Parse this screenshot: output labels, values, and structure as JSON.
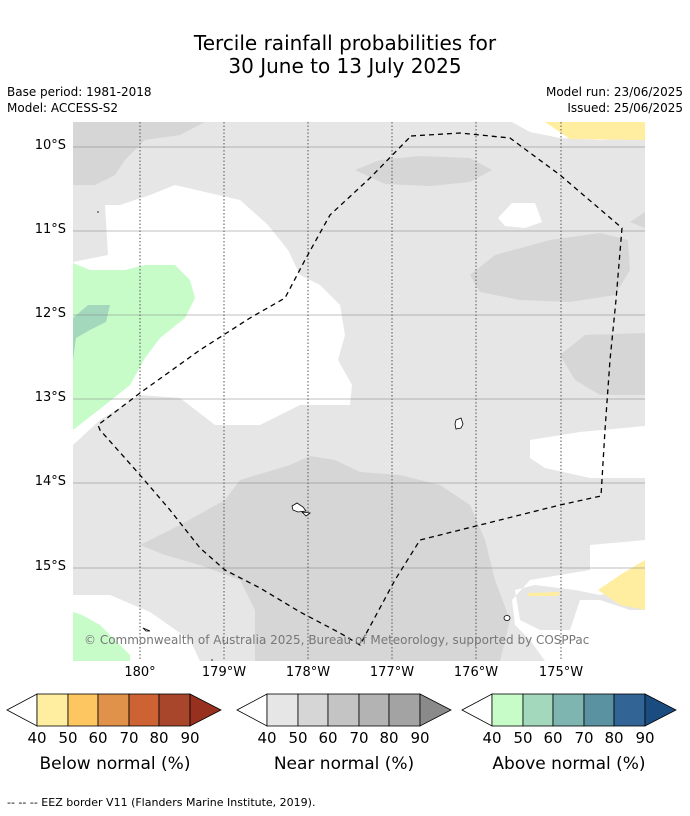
{
  "title_line1": "Tercile rainfall probabilities for",
  "title_line2": "30 June to 13 July 2025",
  "base_period": "Base period: 1981-2018",
  "model": "Model: ACCESS-S2",
  "model_run": "Model run: 23/06/2025",
  "issued": "Issued: 25/06/2025",
  "lat_labels": [
    "10°S",
    "11°S",
    "12°S",
    "13°S",
    "14°S",
    "15°S"
  ],
  "lon_labels": [
    "180°",
    "179°W",
    "178°W",
    "177°W",
    "176°W",
    "175°W"
  ],
  "copyright": "© Commonwealth of Australia 2025, Bureau of Meteorology, supported by COSPPac",
  "colorbars": [
    {
      "caption": "Below normal (%)",
      "ticks": [
        "40",
        "50",
        "60",
        "70",
        "80",
        "90"
      ],
      "colors": [
        "#ffeda0",
        "#fec661",
        "#e0914a",
        "#cd6233",
        "#a8462c",
        "#97301f"
      ]
    },
    {
      "caption": "Near normal (%)",
      "ticks": [
        "40",
        "50",
        "60",
        "70",
        "80",
        "90"
      ],
      "colors": [
        "#e6e6e6",
        "#d6d6d6",
        "#c4c4c4",
        "#b3b3b3",
        "#a3a3a3",
        "#8a8a8a"
      ]
    },
    {
      "caption": "Above normal (%)",
      "ticks": [
        "40",
        "50",
        "60",
        "70",
        "80",
        "90"
      ],
      "colors": [
        "#c7fcc9",
        "#a4d8bd",
        "#7fb5b0",
        "#5b92a2",
        "#326596",
        "#1b4c80"
      ]
    }
  ],
  "footer": "--  --  -- EEZ border V11 (Flanders Marine Institute, 2019)."
}
